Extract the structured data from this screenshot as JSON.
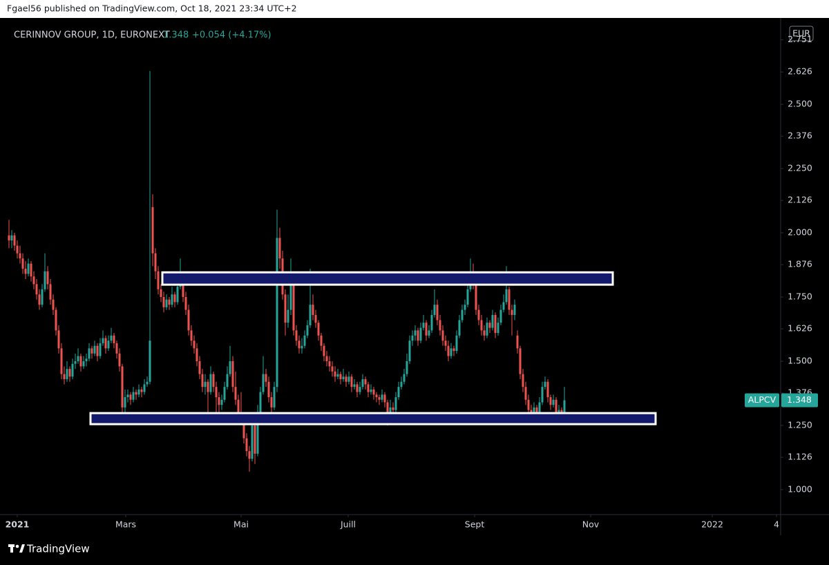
{
  "header": {
    "text": "Fgael56 published on TradingView.com, Oct 18, 2021 23:34 UTC+2"
  },
  "footer": {
    "brand": "TradingView"
  },
  "chart_data": {
    "type": "candlestick",
    "title": "CERINNOV GROUP, 1D, EURONEXT",
    "change": "+0.054 (+4.17%)",
    "currency": "EUR",
    "symbol": "ALPCV",
    "up_color": "#26a69a",
    "down_color": "#ef5350",
    "zone_color": "#141a6b",
    "zone_border": "#ffffff",
    "ylim": [
      0.903,
      2.804
    ],
    "yticks": [
      {
        "value": 1,
        "label": "1.000"
      },
      1.126,
      {
        "value": 1.25,
        "label": "1.250"
      },
      1.376,
      {
        "value": 1.5,
        "label": "1.500"
      },
      1.626,
      {
        "value": 1.75,
        "label": "1.750"
      },
      1.876,
      {
        "value": 2,
        "label": "2.000"
      },
      2.126,
      {
        "value": 2.25,
        "label": "2.250"
      },
      2.376,
      {
        "value": 2.5,
        "label": "2.500"
      },
      2.626,
      2.751
    ],
    "xlim": [
      -0.75,
      279.25
    ],
    "xticks": [
      {
        "value": 3,
        "label": "2021"
      },
      {
        "value": 42.25,
        "label": "Mars"
      },
      {
        "value": 84,
        "label": "Mai"
      },
      {
        "value": 122.75,
        "label": "Juill"
      },
      {
        "value": 168.5,
        "label": "Sept"
      },
      {
        "value": 210.5,
        "label": "Nov"
      },
      {
        "value": 254.5,
        "label": "2022"
      },
      {
        "value": 277.75,
        "label": "4"
      }
    ],
    "zones": [
      {
        "xlim": [
          55.5,
          218.5
        ],
        "ylim": [
          1.798,
          1.846
        ]
      },
      {
        "xlim": [
          29.5,
          234
        ],
        "ylim": [
          1.255,
          1.298
        ]
      }
    ],
    "candles": [
      [
        1.99,
        2.05,
        1.94,
        1.97
      ],
      [
        1.97,
        2.01,
        1.94,
        1.99
      ],
      [
        1.99,
        2.0,
        1.93,
        1.95
      ],
      [
        1.95,
        1.97,
        1.9,
        1.92
      ],
      [
        1.92,
        1.95,
        1.88,
        1.9
      ],
      [
        1.9,
        1.92,
        1.84,
        1.86
      ],
      [
        1.86,
        1.89,
        1.82,
        1.84
      ],
      [
        1.84,
        1.9,
        1.83,
        1.88
      ],
      [
        1.88,
        1.89,
        1.81,
        1.83
      ],
      [
        1.83,
        1.85,
        1.78,
        1.8
      ],
      [
        1.8,
        1.82,
        1.74,
        1.76
      ],
      [
        1.76,
        1.78,
        1.7,
        1.72
      ],
      [
        1.72,
        1.8,
        1.71,
        1.78
      ],
      [
        1.78,
        1.92,
        1.77,
        1.85
      ],
      [
        1.85,
        1.87,
        1.78,
        1.8
      ],
      [
        1.8,
        1.82,
        1.72,
        1.74
      ],
      [
        1.74,
        1.76,
        1.68,
        1.7
      ],
      [
        1.7,
        1.71,
        1.6,
        1.62
      ],
      [
        1.62,
        1.64,
        1.53,
        1.55
      ],
      [
        1.55,
        1.57,
        1.43,
        1.45
      ],
      [
        1.45,
        1.48,
        1.41,
        1.43
      ],
      [
        1.43,
        1.5,
        1.42,
        1.47
      ],
      [
        1.47,
        1.48,
        1.42,
        1.44
      ],
      [
        1.44,
        1.51,
        1.43,
        1.49
      ],
      [
        1.49,
        1.53,
        1.47,
        1.5
      ],
      [
        1.5,
        1.55,
        1.49,
        1.52
      ],
      [
        1.52,
        1.53,
        1.46,
        1.48
      ],
      [
        1.48,
        1.52,
        1.47,
        1.5
      ],
      [
        1.5,
        1.53,
        1.48,
        1.51
      ],
      [
        1.51,
        1.57,
        1.5,
        1.55
      ],
      [
        1.55,
        1.56,
        1.51,
        1.53
      ],
      [
        1.53,
        1.58,
        1.52,
        1.56
      ],
      [
        1.56,
        1.57,
        1.5,
        1.52
      ],
      [
        1.52,
        1.59,
        1.51,
        1.57
      ],
      [
        1.57,
        1.62,
        1.56,
        1.59
      ],
      [
        1.59,
        1.6,
        1.53,
        1.55
      ],
      [
        1.55,
        1.6,
        1.54,
        1.58
      ],
      [
        1.58,
        1.63,
        1.57,
        1.6
      ],
      [
        1.6,
        1.61,
        1.55,
        1.57
      ],
      [
        1.57,
        1.58,
        1.51,
        1.53
      ],
      [
        1.53,
        1.55,
        1.46,
        1.48
      ],
      [
        1.48,
        1.49,
        1.27,
        1.32
      ],
      [
        1.32,
        1.39,
        1.3,
        1.36
      ],
      [
        1.36,
        1.39,
        1.34,
        1.37
      ],
      [
        1.37,
        1.38,
        1.33,
        1.35
      ],
      [
        1.35,
        1.4,
        1.34,
        1.38
      ],
      [
        1.38,
        1.39,
        1.35,
        1.37
      ],
      [
        1.37,
        1.41,
        1.36,
        1.39
      ],
      [
        1.39,
        1.4,
        1.36,
        1.38
      ],
      [
        1.38,
        1.43,
        1.37,
        1.41
      ],
      [
        1.41,
        1.44,
        1.4,
        1.42
      ],
      [
        1.42,
        2.63,
        1.41,
        1.58
      ],
      [
        2.1,
        2.15,
        1.87,
        1.92
      ],
      [
        1.92,
        1.94,
        1.82,
        1.85
      ],
      [
        1.85,
        1.87,
        1.76,
        1.78
      ],
      [
        1.78,
        1.8,
        1.73,
        1.75
      ],
      [
        1.75,
        1.77,
        1.69,
        1.71
      ],
      [
        1.71,
        1.76,
        1.7,
        1.74
      ],
      [
        1.74,
        1.75,
        1.7,
        1.72
      ],
      [
        1.72,
        1.79,
        1.71,
        1.76
      ],
      [
        1.76,
        1.77,
        1.71,
        1.73
      ],
      [
        1.73,
        1.81,
        1.72,
        1.79
      ],
      [
        1.79,
        1.9,
        1.78,
        1.8
      ],
      [
        1.8,
        1.82,
        1.73,
        1.75
      ],
      [
        1.75,
        1.77,
        1.68,
        1.7
      ],
      [
        1.7,
        1.72,
        1.6,
        1.62
      ],
      [
        1.62,
        1.64,
        1.56,
        1.58
      ],
      [
        1.58,
        1.6,
        1.53,
        1.55
      ],
      [
        1.55,
        1.57,
        1.48,
        1.5
      ],
      [
        1.5,
        1.52,
        1.43,
        1.45
      ],
      [
        1.45,
        1.47,
        1.38,
        1.4
      ],
      [
        1.4,
        1.45,
        1.37,
        1.42
      ],
      [
        1.42,
        1.43,
        1.29,
        1.38
      ],
      [
        1.38,
        1.48,
        1.37,
        1.45
      ],
      [
        1.45,
        1.46,
        1.38,
        1.4
      ],
      [
        1.4,
        1.42,
        1.3,
        1.36
      ],
      [
        1.36,
        1.38,
        1.29,
        1.33
      ],
      [
        1.33,
        1.37,
        1.31,
        1.35
      ],
      [
        1.35,
        1.42,
        1.34,
        1.4
      ],
      [
        1.4,
        1.48,
        1.39,
        1.45
      ],
      [
        1.45,
        1.56,
        1.44,
        1.5
      ],
      [
        1.5,
        1.52,
        1.38,
        1.4
      ],
      [
        1.4,
        1.46,
        1.33,
        1.35
      ],
      [
        1.35,
        1.37,
        1.28,
        1.3
      ],
      [
        1.3,
        1.38,
        1.26,
        1.28
      ],
      [
        1.28,
        1.3,
        1.18,
        1.2
      ],
      [
        1.2,
        1.22,
        1.13,
        1.15
      ],
      [
        1.15,
        1.17,
        1.07,
        1.12
      ],
      [
        1.12,
        1.28,
        1.11,
        1.25
      ],
      [
        1.25,
        1.27,
        1.1,
        1.14
      ],
      [
        1.14,
        1.33,
        1.13,
        1.3
      ],
      [
        1.3,
        1.4,
        1.29,
        1.38
      ],
      [
        1.38,
        1.52,
        1.37,
        1.45
      ],
      [
        1.45,
        1.47,
        1.4,
        1.42
      ],
      [
        1.42,
        1.44,
        1.34,
        1.36
      ],
      [
        1.36,
        1.38,
        1.3,
        1.32
      ],
      [
        1.32,
        1.42,
        1.31,
        1.4
      ],
      [
        1.4,
        2.09,
        1.38,
        1.98
      ],
      [
        1.98,
        2.02,
        1.86,
        1.9
      ],
      [
        1.9,
        1.93,
        1.74,
        1.76
      ],
      [
        1.76,
        1.78,
        1.6,
        1.65
      ],
      [
        1.65,
        1.76,
        1.63,
        1.7
      ],
      [
        1.7,
        1.9,
        1.68,
        1.8
      ],
      [
        1.8,
        1.82,
        1.6,
        1.62
      ],
      [
        1.62,
        1.64,
        1.56,
        1.58
      ],
      [
        1.58,
        1.6,
        1.53,
        1.55
      ],
      [
        1.55,
        1.59,
        1.53,
        1.56
      ],
      [
        1.56,
        1.62,
        1.55,
        1.6
      ],
      [
        1.6,
        1.66,
        1.59,
        1.64
      ],
      [
        1.64,
        1.86,
        1.63,
        1.72
      ],
      [
        1.72,
        1.76,
        1.66,
        1.68
      ],
      [
        1.68,
        1.7,
        1.63,
        1.65
      ],
      [
        1.65,
        1.66,
        1.58,
        1.6
      ],
      [
        1.6,
        1.61,
        1.54,
        1.56
      ],
      [
        1.56,
        1.57,
        1.5,
        1.52
      ],
      [
        1.52,
        1.54,
        1.48,
        1.5
      ],
      [
        1.5,
        1.52,
        1.46,
        1.48
      ],
      [
        1.48,
        1.5,
        1.44,
        1.46
      ],
      [
        1.46,
        1.48,
        1.42,
        1.44
      ],
      [
        1.44,
        1.47,
        1.43,
        1.45
      ],
      [
        1.45,
        1.46,
        1.41,
        1.43
      ],
      [
        1.43,
        1.47,
        1.42,
        1.44
      ],
      [
        1.44,
        1.45,
        1.4,
        1.42
      ],
      [
        1.42,
        1.46,
        1.41,
        1.44
      ],
      [
        1.44,
        1.45,
        1.38,
        1.4
      ],
      [
        1.4,
        1.43,
        1.39,
        1.41
      ],
      [
        1.41,
        1.42,
        1.36,
        1.38
      ],
      [
        1.38,
        1.42,
        1.37,
        1.4
      ],
      [
        1.4,
        1.45,
        1.39,
        1.43
      ],
      [
        1.43,
        1.44,
        1.39,
        1.41
      ],
      [
        1.41,
        1.42,
        1.36,
        1.38
      ],
      [
        1.38,
        1.41,
        1.37,
        1.39
      ],
      [
        1.39,
        1.4,
        1.35,
        1.37
      ],
      [
        1.37,
        1.38,
        1.34,
        1.36
      ],
      [
        1.36,
        1.37,
        1.33,
        1.35
      ],
      [
        1.35,
        1.39,
        1.34,
        1.37
      ],
      [
        1.37,
        1.38,
        1.32,
        1.34
      ],
      [
        1.34,
        1.35,
        1.25,
        1.3
      ],
      [
        1.3,
        1.35,
        1.27,
        1.32
      ],
      [
        1.32,
        1.34,
        1.27,
        1.31
      ],
      [
        1.31,
        1.38,
        1.3,
        1.36
      ],
      [
        1.36,
        1.42,
        1.35,
        1.4
      ],
      [
        1.4,
        1.44,
        1.39,
        1.42
      ],
      [
        1.42,
        1.47,
        1.41,
        1.45
      ],
      [
        1.45,
        1.53,
        1.44,
        1.5
      ],
      [
        1.5,
        1.6,
        1.49,
        1.58
      ],
      [
        1.58,
        1.62,
        1.56,
        1.6
      ],
      [
        1.6,
        1.64,
        1.58,
        1.62
      ],
      [
        1.62,
        1.63,
        1.56,
        1.58
      ],
      [
        1.58,
        1.65,
        1.57,
        1.63
      ],
      [
        1.63,
        1.68,
        1.62,
        1.65
      ],
      [
        1.65,
        1.66,
        1.58,
        1.6
      ],
      [
        1.6,
        1.64,
        1.59,
        1.62
      ],
      [
        1.62,
        1.7,
        1.61,
        1.68
      ],
      [
        1.68,
        1.78,
        1.67,
        1.72
      ],
      [
        1.72,
        1.74,
        1.64,
        1.66
      ],
      [
        1.66,
        1.68,
        1.6,
        1.62
      ],
      [
        1.62,
        1.64,
        1.56,
        1.58
      ],
      [
        1.58,
        1.6,
        1.54,
        1.56
      ],
      [
        1.56,
        1.58,
        1.5,
        1.52
      ],
      [
        1.52,
        1.57,
        1.51,
        1.55
      ],
      [
        1.55,
        1.56,
        1.52,
        1.54
      ],
      [
        1.54,
        1.62,
        1.53,
        1.6
      ],
      [
        1.6,
        1.68,
        1.59,
        1.66
      ],
      [
        1.66,
        1.72,
        1.65,
        1.7
      ],
      [
        1.7,
        1.74,
        1.68,
        1.72
      ],
      [
        1.72,
        1.8,
        1.71,
        1.78
      ],
      [
        1.78,
        1.9,
        1.77,
        1.84
      ],
      [
        1.84,
        1.88,
        1.78,
        1.8
      ],
      [
        1.8,
        1.82,
        1.68,
        1.7
      ],
      [
        1.7,
        1.72,
        1.64,
        1.66
      ],
      [
        1.66,
        1.68,
        1.6,
        1.62
      ],
      [
        1.62,
        1.64,
        1.58,
        1.6
      ],
      [
        1.6,
        1.67,
        1.59,
        1.65
      ],
      [
        1.65,
        1.66,
        1.61,
        1.63
      ],
      [
        1.63,
        1.7,
        1.62,
        1.68
      ],
      [
        1.68,
        1.69,
        1.59,
        1.61
      ],
      [
        1.61,
        1.67,
        1.6,
        1.65
      ],
      [
        1.65,
        1.72,
        1.64,
        1.7
      ],
      [
        1.7,
        1.76,
        1.69,
        1.73
      ],
      [
        1.73,
        1.87,
        1.72,
        1.78
      ],
      [
        1.78,
        1.79,
        1.68,
        1.7
      ],
      [
        1.7,
        1.72,
        1.6,
        1.68
      ],
      [
        1.68,
        1.74,
        1.66,
        1.72
      ],
      [
        1.6,
        1.62,
        1.53,
        1.55
      ],
      [
        1.55,
        1.56,
        1.43,
        1.45
      ],
      [
        1.45,
        1.47,
        1.38,
        1.4
      ],
      [
        1.4,
        1.42,
        1.33,
        1.35
      ],
      [
        1.35,
        1.37,
        1.28,
        1.31
      ],
      [
        1.31,
        1.33,
        1.28,
        1.3
      ],
      [
        1.3,
        1.34,
        1.27,
        1.32
      ],
      [
        1.32,
        1.33,
        1.27,
        1.29
      ],
      [
        1.29,
        1.36,
        1.28,
        1.34
      ],
      [
        1.34,
        1.42,
        1.33,
        1.4
      ],
      [
        1.4,
        1.44,
        1.39,
        1.42
      ],
      [
        1.42,
        1.43,
        1.34,
        1.36
      ],
      [
        1.36,
        1.37,
        1.31,
        1.33
      ],
      [
        1.33,
        1.37,
        1.32,
        1.35
      ],
      [
        1.35,
        1.36,
        1.28,
        1.3
      ],
      [
        1.3,
        1.33,
        1.29,
        1.31
      ],
      [
        1.31,
        1.32,
        1.28,
        1.294
      ],
      [
        1.294,
        1.4,
        1.28,
        1.348
      ]
    ]
  }
}
